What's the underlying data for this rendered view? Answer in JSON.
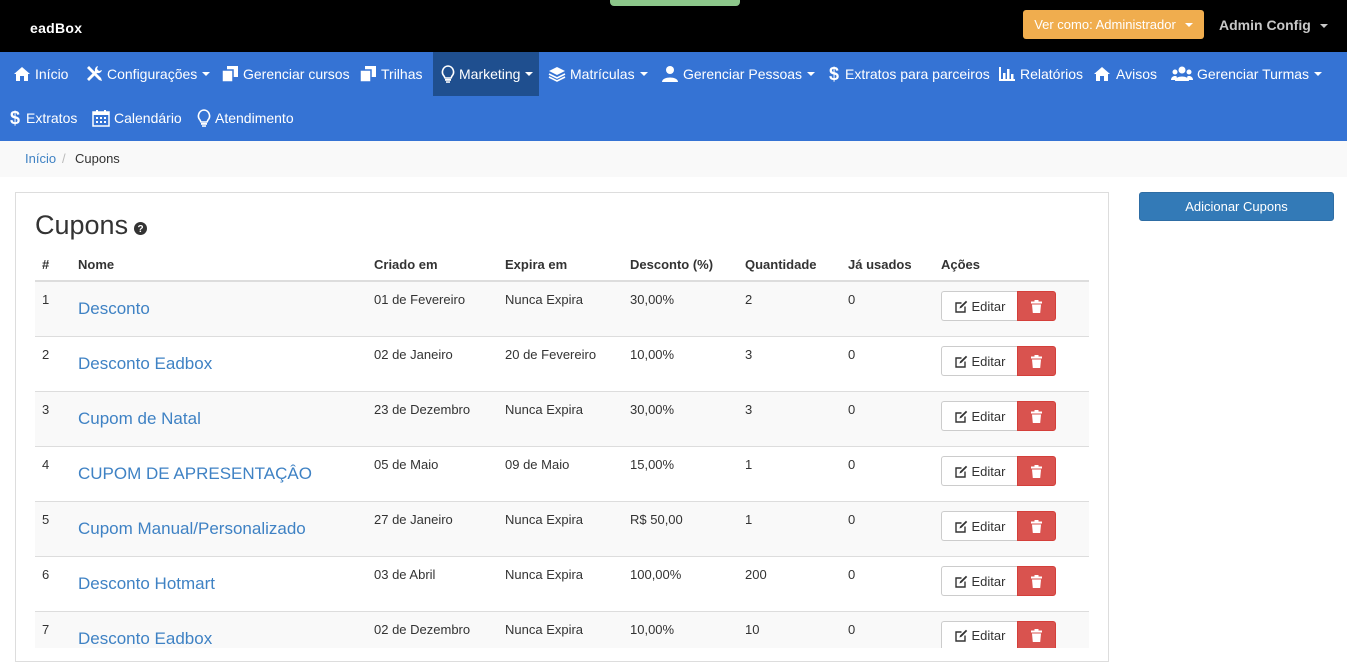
{
  "topbar": {
    "logo": "eadBox",
    "view_as": "Ver como: Administrador",
    "admin_menu": "Admin Config"
  },
  "nav": {
    "items": [
      {
        "label": "Início",
        "icon": "home-icon"
      },
      {
        "label": "Configurações",
        "icon": "wrench-icon"
      },
      {
        "label": "Gerenciar cursos",
        "icon": "copy-icon"
      },
      {
        "label": "Trilhas",
        "icon": "copy-icon"
      },
      {
        "label": "Marketing",
        "icon": "lightbulb-icon"
      },
      {
        "label": "Matrículas",
        "icon": "layers-icon"
      },
      {
        "label": "Gerenciar Pessoas",
        "icon": "user-icon"
      },
      {
        "label": "Extratos para parceiros",
        "icon": "dollar-icon"
      },
      {
        "label": "Relatórios",
        "icon": "bar-chart-icon"
      },
      {
        "label": "Avisos",
        "icon": "home-icon"
      },
      {
        "label": "Gerenciar Turmas",
        "icon": "users-icon"
      },
      {
        "label": "Extratos",
        "icon": "dollar-icon"
      },
      {
        "label": "Calendário",
        "icon": "calendar-icon"
      },
      {
        "label": "Atendimento",
        "icon": "lightbulb-icon"
      }
    ],
    "active": "Marketing"
  },
  "breadcrumb": {
    "home": "Início",
    "separator": "/",
    "current": "Cupons"
  },
  "page": {
    "title": "Cupons",
    "add_button": "Adicionar Cupons"
  },
  "table": {
    "headers": {
      "num": "#",
      "name": "Nome",
      "created": "Criado em",
      "expires": "Expira em",
      "discount": "Desconto (%)",
      "quantity": "Quantidade",
      "used": "Já usados",
      "actions": "Ações"
    },
    "edit_label": "Editar",
    "rows": [
      {
        "num": "1",
        "name": "Desconto",
        "created": "01 de Fevereiro",
        "expires": "Nunca Expira",
        "discount": "30,00%",
        "quantity": "2",
        "used": "0"
      },
      {
        "num": "2",
        "name": "Desconto Eadbox",
        "created": "02 de Janeiro",
        "expires": "20 de Fevereiro",
        "discount": "10,00%",
        "quantity": "3",
        "used": "0"
      },
      {
        "num": "3",
        "name": "Cupom de Natal",
        "created": "23 de Dezembro",
        "expires": "Nunca Expira",
        "discount": "30,00%",
        "quantity": "3",
        "used": "0"
      },
      {
        "num": "4",
        "name": "CUPOM DE APRESENTAÇÂO",
        "created": "05 de Maio",
        "expires": "09 de Maio",
        "discount": "15,00%",
        "quantity": "1",
        "used": "0"
      },
      {
        "num": "5",
        "name": "Cupom Manual/Personalizado",
        "created": "27 de Janeiro",
        "expires": "Nunca Expira",
        "discount": "R$ 50,00",
        "quantity": "1",
        "used": "0"
      },
      {
        "num": "6",
        "name": "Desconto Hotmart",
        "created": "03 de Abril",
        "expires": "Nunca Expira",
        "discount": "100,00%",
        "quantity": "200",
        "used": "0"
      },
      {
        "num": "7",
        "name": "Desconto Eadbox",
        "created": "02 de Dezembro",
        "expires": "Nunca Expira",
        "discount": "10,00%",
        "quantity": "10",
        "used": "0"
      }
    ]
  },
  "colors": {
    "navbar": "#3573d4",
    "nav_active": "#1f4f8f",
    "view_as_button": "#f0ad4e",
    "link": "#3f82c4",
    "delete_button": "#d9534f",
    "add_button": "#337ab7"
  }
}
